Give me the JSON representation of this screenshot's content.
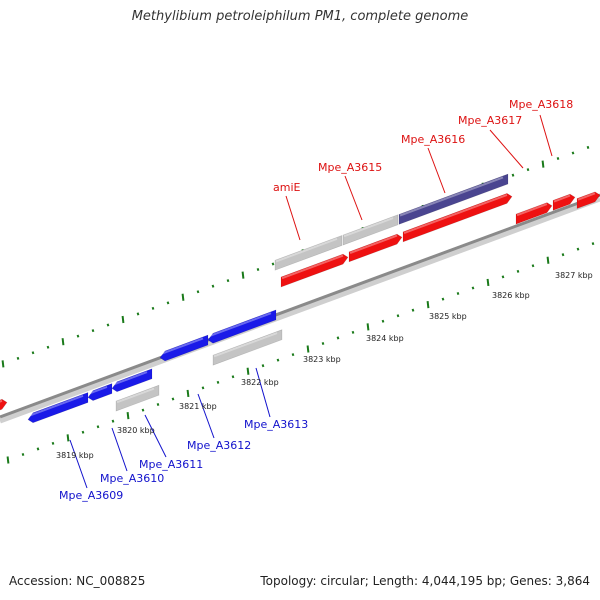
{
  "title": "Methylibium petroleiphilum PM1, complete genome",
  "footer": {
    "accession": "Accession: NC_008825",
    "stats": "Topology: circular; Length: 4,044,195 bp; Genes: 3,864"
  },
  "colors": {
    "forward_gene": "#ee1111",
    "reverse_gene": "#1a1ae8",
    "pseudo_gene": "#c4c4c4",
    "highlight_gene": "#4a4590",
    "tick": "#1a7a1a",
    "backbone": "#888888",
    "label_forward": "#dd1111",
    "label_reverse": "#1111cc"
  },
  "scale": {
    "labels": [
      "3819 kbp",
      "3820 kbp",
      "3821 kbp",
      "3822 kbp",
      "3823 kbp",
      "3824 kbp",
      "3825 kbp",
      "3826 kbp",
      "3827 kbp"
    ]
  },
  "gene_labels": {
    "forward": [
      "amiE",
      "Mpe_A3615",
      "Mpe_A3616",
      "Mpe_A3617",
      "Mpe_A3618"
    ],
    "reverse": [
      "Mpe_A3609",
      "Mpe_A3610",
      "Mpe_A3611",
      "Mpe_A3612",
      "Mpe_A3613"
    ]
  }
}
